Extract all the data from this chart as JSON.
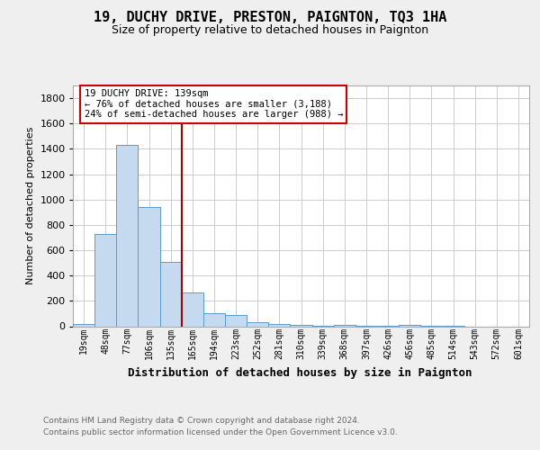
{
  "title": "19, DUCHY DRIVE, PRESTON, PAIGNTON, TQ3 1HA",
  "subtitle": "Size of property relative to detached houses in Paignton",
  "xlabel": "Distribution of detached houses by size in Paignton",
  "ylabel": "Number of detached properties",
  "footnote1": "Contains HM Land Registry data © Crown copyright and database right 2024.",
  "footnote2": "Contains public sector information licensed under the Open Government Licence v3.0.",
  "categories": [
    "19sqm",
    "48sqm",
    "77sqm",
    "106sqm",
    "135sqm",
    "165sqm",
    "194sqm",
    "223sqm",
    "252sqm",
    "281sqm",
    "310sqm",
    "339sqm",
    "368sqm",
    "397sqm",
    "426sqm",
    "456sqm",
    "485sqm",
    "514sqm",
    "543sqm",
    "572sqm",
    "601sqm"
  ],
  "values": [
    20,
    730,
    1430,
    940,
    510,
    265,
    105,
    90,
    30,
    18,
    10,
    5,
    8,
    3,
    2,
    8,
    2,
    1,
    0,
    0,
    0
  ],
  "bar_color": "#c5d9ef",
  "bar_edge_color": "#5b9bd5",
  "vline_position": 4.5,
  "vline_color": "#aa0000",
  "annotation_line1": "19 DUCHY DRIVE: 139sqm",
  "annotation_line2": "← 76% of detached houses are smaller (3,188)",
  "annotation_line3": "24% of semi-detached houses are larger (988) →",
  "ann_box_facecolor": "#ffffff",
  "ann_box_edgecolor": "#cc0000",
  "ylim": [
    0,
    1900
  ],
  "yticks": [
    0,
    200,
    400,
    600,
    800,
    1000,
    1200,
    1400,
    1600,
    1800
  ],
  "grid_color": "#cccccc",
  "ax_bg_color": "#ffffff",
  "fig_bg_color": "#efefef",
  "title_fontsize": 11,
  "subtitle_fontsize": 9,
  "ylabel_fontsize": 8,
  "xlabel_fontsize": 9,
  "tick_fontsize": 8,
  "xtick_fontsize": 7,
  "footnote_fontsize": 6.5,
  "footnote_color": "#666666"
}
